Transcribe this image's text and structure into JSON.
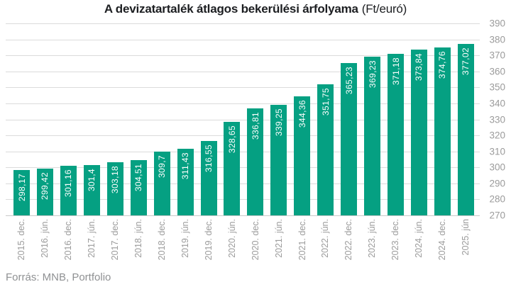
{
  "title": {
    "main": "A devizatartalék átlagos bekerülési árfolyama",
    "unit": "(Ft/euró)"
  },
  "source": "Forrás: MNB, Portfolio",
  "colors": {
    "bar": "#05A082",
    "grid": "#DBDBDB",
    "baseline": "#C9C9C9",
    "axis_text": "#9B9B9B",
    "title_text": "#1C1E21",
    "value_label_text": "#FFFFFF",
    "source_text": "#8F9193",
    "background": "#FFFFFF"
  },
  "chart_data": {
    "type": "bar",
    "title": "A devizatartalék átlagos bekerülési árfolyama (Ft/euró)",
    "categories": [
      "2015. dec.",
      "2016. jún.",
      "2016. dec.",
      "2017. jún.",
      "2017. dec.",
      "2018. jún.",
      "2018. dec.",
      "2019. jún.",
      "2019. dec.",
      "2020. jún.",
      "2020. dec.",
      "2021. jún.",
      "2021. dec.",
      "2022. jún.",
      "2022. dec.",
      "2023. jún.",
      "2023. dec.",
      "2024. jún.",
      "2024. dec.",
      "2025. jún"
    ],
    "values": [
      298.17,
      299.42,
      301.16,
      301.4,
      303.18,
      304.51,
      309.7,
      311.43,
      316.55,
      328.65,
      336.81,
      339.25,
      344.36,
      351.75,
      365.23,
      369.23,
      371.18,
      373.84,
      374.76,
      377.02
    ],
    "value_labels": [
      "298,17",
      "299,42",
      "301,16",
      "301,4",
      "303,18",
      "304,51",
      "309,7",
      "311,43",
      "316,55",
      "328,65",
      "336,81",
      "339,25",
      "344,36",
      "351,75",
      "365,23",
      "369,23",
      "371,18",
      "373,84",
      "374,76",
      "377,02"
    ],
    "xlabel": "",
    "ylabel": "",
    "ylim": [
      270,
      390
    ],
    "ytick_step": 10,
    "yticks": [
      390,
      380,
      370,
      360,
      350,
      340,
      330,
      320,
      310,
      300,
      290,
      280,
      270
    ],
    "grid": true,
    "y_axis_side": "right",
    "legend": null,
    "value_labels_position": "inside-top-rotated"
  }
}
